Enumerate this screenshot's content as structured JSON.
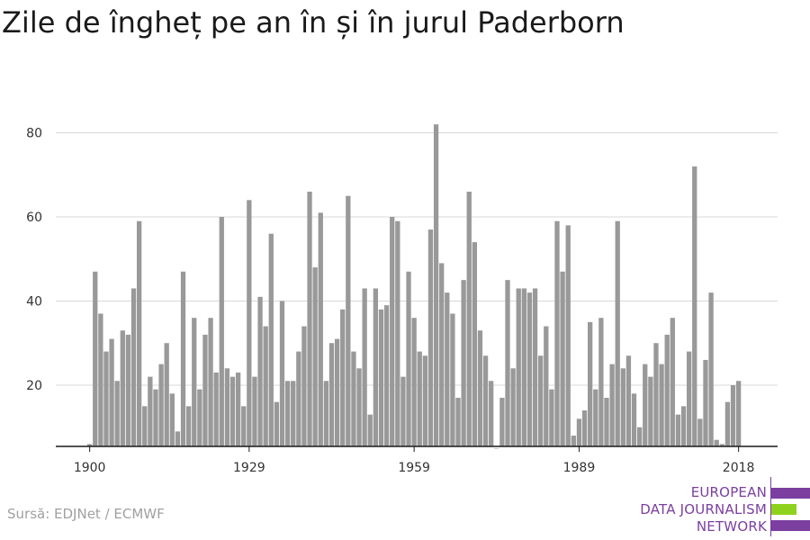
{
  "chart_data": {
    "type": "bar",
    "title": "Zile de îngheț pe an în și în jurul Paderborn",
    "x_start": 1900,
    "x_end": 2018,
    "xticks": [
      1900,
      1929,
      1959,
      1989,
      2018
    ],
    "yticks": [
      20,
      40,
      60,
      80
    ],
    "ylim": [
      5,
      85
    ],
    "grid": true,
    "color": "#999999",
    "x": [
      1900,
      1901,
      1902,
      1903,
      1904,
      1905,
      1906,
      1907,
      1908,
      1909,
      1910,
      1911,
      1912,
      1913,
      1914,
      1915,
      1916,
      1917,
      1918,
      1919,
      1920,
      1921,
      1922,
      1923,
      1924,
      1925,
      1926,
      1927,
      1928,
      1929,
      1930,
      1931,
      1932,
      1933,
      1934,
      1935,
      1936,
      1937,
      1938,
      1939,
      1940,
      1941,
      1942,
      1943,
      1944,
      1945,
      1946,
      1947,
      1948,
      1949,
      1950,
      1951,
      1952,
      1953,
      1954,
      1955,
      1956,
      1957,
      1958,
      1959,
      1960,
      1961,
      1962,
      1963,
      1964,
      1965,
      1966,
      1967,
      1968,
      1969,
      1970,
      1971,
      1972,
      1973,
      1974,
      1975,
      1976,
      1977,
      1978,
      1979,
      1980,
      1981,
      1982,
      1983,
      1984,
      1985,
      1986,
      1987,
      1988,
      1989,
      1990,
      1991,
      1992,
      1993,
      1994,
      1995,
      1996,
      1997,
      1998,
      1999,
      2000,
      2001,
      2002,
      2003,
      2004,
      2005,
      2006,
      2007,
      2008,
      2009,
      2010,
      2011,
      2012,
      2013,
      2014,
      2015,
      2016,
      2017,
      2018
    ],
    "values": [
      6,
      47,
      37,
      28,
      31,
      21,
      33,
      32,
      43,
      59,
      15,
      22,
      19,
      25,
      30,
      18,
      9,
      47,
      15,
      36,
      19,
      32,
      36,
      23,
      60,
      24,
      22,
      23,
      15,
      64,
      22,
      41,
      34,
      56,
      16,
      40,
      21,
      21,
      28,
      34,
      66,
      48,
      61,
      21,
      30,
      31,
      38,
      65,
      28,
      24,
      43,
      13,
      43,
      38,
      39,
      60,
      59,
      22,
      47,
      36,
      28,
      27,
      57,
      82,
      49,
      42,
      37,
      17,
      45,
      66,
      54,
      33,
      27,
      21,
      5,
      17,
      45,
      24,
      43,
      43,
      42,
      43,
      27,
      34,
      19,
      59,
      47,
      58,
      8,
      12,
      14,
      35,
      19,
      36,
      17,
      25,
      59,
      24,
      27,
      18,
      10,
      25,
      22,
      30,
      25,
      32,
      36,
      13,
      15,
      28,
      72,
      12,
      26,
      42,
      7,
      6,
      16,
      20,
      21
    ]
  },
  "source": "Sursă: EDJNet / ECMWF",
  "logo": {
    "line1": "EUROPEAN",
    "line2": "DATA JOURNALISM",
    "line3": "NETWORK",
    "purple": "#7b3fa0",
    "green": "#8fd21e"
  }
}
